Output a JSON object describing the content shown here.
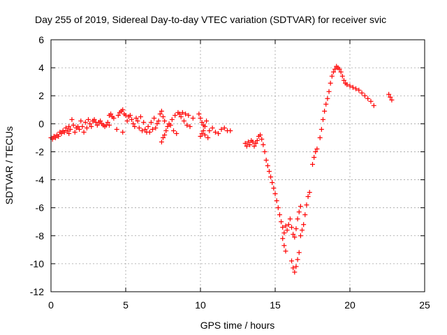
{
  "chart_data": {
    "type": "scatter",
    "title": "Day 255 of 2019, Sidereal Day-to-day VTEC variation (SDTVAR) for receiver svic",
    "xlabel": "GPS time / hours",
    "ylabel": "SDTVAR / TECUs",
    "xlim": [
      0,
      25
    ],
    "ylim": [
      -12,
      6
    ],
    "xticks": [
      0,
      5,
      10,
      15,
      20,
      25
    ],
    "yticks": [
      -12,
      -10,
      -8,
      -6,
      -4,
      -2,
      0,
      2,
      4,
      6
    ],
    "xtick_labels": [
      "0",
      "5",
      "10",
      "15",
      "20",
      "25"
    ],
    "ytick_labels": [
      "-12",
      "-10",
      "-8",
      "-6",
      "-4",
      "-2",
      "0",
      "2",
      "4",
      "6"
    ],
    "grid": true,
    "marker": "plus",
    "color": "#ff0000",
    "series": [
      {
        "points": [
          [
            0.0,
            -1.0
          ],
          [
            0.1,
            -1.1
          ],
          [
            0.2,
            -0.9
          ],
          [
            0.3,
            -1.0
          ],
          [
            0.4,
            -0.8
          ],
          [
            0.5,
            -0.9
          ],
          [
            0.6,
            -0.6
          ],
          [
            0.7,
            -0.7
          ],
          [
            0.8,
            -0.5
          ],
          [
            0.9,
            -0.6
          ],
          [
            1.0,
            -0.3
          ],
          [
            1.1,
            -0.5
          ],
          [
            1.2,
            -0.2
          ],
          [
            1.3,
            -0.4
          ],
          [
            1.2,
            -0.7
          ],
          [
            1.4,
            0.3
          ],
          [
            1.5,
            -0.1
          ],
          [
            1.6,
            -0.6
          ],
          [
            1.7,
            -0.3
          ],
          [
            1.8,
            -0.2
          ],
          [
            1.9,
            -0.4
          ],
          [
            2.0,
            0.2
          ],
          [
            2.1,
            -0.2
          ],
          [
            2.2,
            -0.6
          ],
          [
            2.3,
            0.1
          ],
          [
            2.4,
            -0.3
          ],
          [
            2.5,
            0.3
          ],
          [
            2.6,
            0.0
          ],
          [
            2.7,
            -0.2
          ],
          [
            2.8,
            0.2
          ],
          [
            2.9,
            0.3
          ],
          [
            3.0,
            0.1
          ],
          [
            3.1,
            -0.1
          ],
          [
            3.2,
            0.1
          ],
          [
            3.3,
            0.2
          ],
          [
            3.4,
            0.0
          ],
          [
            3.5,
            -0.1
          ],
          [
            3.6,
            -0.2
          ],
          [
            3.7,
            -0.1
          ],
          [
            3.8,
            0.1
          ],
          [
            3.9,
            -0.1
          ],
          [
            3.9,
            0.6
          ],
          [
            4.0,
            0.7
          ],
          [
            4.1,
            0.5
          ],
          [
            4.2,
            0.4
          ],
          [
            4.4,
            -0.4
          ],
          [
            4.5,
            0.6
          ],
          [
            4.6,
            0.8
          ],
          [
            4.7,
            0.9
          ],
          [
            4.8,
            1.0
          ],
          [
            4.9,
            0.7
          ],
          [
            5.0,
            0.6
          ],
          [
            4.8,
            -0.6
          ],
          [
            5.1,
            0.2
          ],
          [
            5.2,
            0.5
          ],
          [
            5.3,
            0.6
          ],
          [
            5.4,
            0.3
          ],
          [
            5.5,
            0.0
          ],
          [
            5.6,
            -0.2
          ],
          [
            5.7,
            0.4
          ],
          [
            5.8,
            0.2
          ],
          [
            5.9,
            -0.3
          ],
          [
            6.0,
            0.5
          ],
          [
            6.1,
            -0.5
          ],
          [
            6.2,
            0.1
          ],
          [
            6.3,
            -0.4
          ],
          [
            6.4,
            -0.6
          ],
          [
            6.5,
            -0.2
          ],
          [
            6.6,
            -0.6
          ],
          [
            6.7,
            0.1
          ],
          [
            6.8,
            -0.4
          ],
          [
            6.9,
            0.4
          ],
          [
            7.0,
            -0.3
          ],
          [
            7.1,
            0.0
          ],
          [
            7.2,
            0.2
          ],
          [
            7.3,
            0.7
          ],
          [
            7.4,
            0.9
          ],
          [
            7.5,
            0.5
          ],
          [
            7.6,
            0.2
          ],
          [
            7.4,
            -1.3
          ],
          [
            7.5,
            -1.0
          ],
          [
            7.6,
            -0.8
          ],
          [
            7.7,
            -0.5
          ],
          [
            7.8,
            -0.2
          ],
          [
            7.9,
            0.0
          ],
          [
            8.0,
            -0.1
          ],
          [
            8.1,
            0.3
          ],
          [
            8.2,
            -0.5
          ],
          [
            8.3,
            0.6
          ],
          [
            8.4,
            -0.7
          ],
          [
            8.5,
            0.8
          ],
          [
            8.6,
            0.7
          ],
          [
            8.7,
            0.5
          ],
          [
            8.8,
            0.8
          ],
          [
            8.9,
            0.2
          ],
          [
            9.0,
            0.7
          ],
          [
            9.1,
            -0.1
          ],
          [
            9.2,
            0.6
          ],
          [
            9.3,
            -0.2
          ],
          [
            9.5,
            0.4
          ],
          [
            9.9,
            0.7
          ],
          [
            10.0,
            0.4
          ],
          [
            10.1,
            0.1
          ],
          [
            10.2,
            -0.1
          ],
          [
            10.3,
            -0.2
          ],
          [
            10.4,
            0.2
          ],
          [
            10.0,
            -0.9
          ],
          [
            10.1,
            -0.7
          ],
          [
            10.2,
            -0.5
          ],
          [
            10.3,
            -0.8
          ],
          [
            10.5,
            -1.0
          ],
          [
            10.6,
            -0.5
          ],
          [
            10.8,
            -0.3
          ],
          [
            11.0,
            -0.6
          ],
          [
            11.2,
            -0.7
          ],
          [
            11.4,
            -0.4
          ],
          [
            11.6,
            -0.3
          ],
          [
            11.8,
            -0.5
          ],
          [
            12.0,
            -0.5
          ],
          [
            13.0,
            -1.4
          ],
          [
            13.1,
            -1.6
          ],
          [
            13.2,
            -1.3
          ],
          [
            13.3,
            -1.5
          ],
          [
            13.4,
            -1.2
          ],
          [
            13.5,
            -1.3
          ],
          [
            13.6,
            -1.6
          ],
          [
            13.7,
            -1.4
          ],
          [
            13.8,
            -1.2
          ],
          [
            13.9,
            -0.9
          ],
          [
            14.0,
            -0.8
          ],
          [
            14.1,
            -1.1
          ],
          [
            14.2,
            -1.5
          ],
          [
            14.3,
            -2.0
          ],
          [
            14.4,
            -2.6
          ],
          [
            14.5,
            -3.0
          ],
          [
            14.6,
            -3.4
          ],
          [
            14.7,
            -3.8
          ],
          [
            14.8,
            -4.2
          ],
          [
            14.9,
            -4.6
          ],
          [
            15.0,
            -5.0
          ],
          [
            15.1,
            -5.5
          ],
          [
            15.2,
            -6.0
          ],
          [
            15.3,
            -6.5
          ],
          [
            15.4,
            -7.0
          ],
          [
            15.5,
            -7.4
          ],
          [
            15.6,
            -7.8
          ],
          [
            15.7,
            -7.3
          ],
          [
            15.5,
            -8.2
          ],
          [
            15.6,
            -8.7
          ],
          [
            15.7,
            -9.1
          ],
          [
            15.8,
            -7.6
          ],
          [
            15.9,
            -7.2
          ],
          [
            16.0,
            -6.8
          ],
          [
            16.1,
            -7.4
          ],
          [
            16.2,
            -7.9
          ],
          [
            16.3,
            -8.1
          ],
          [
            16.1,
            -9.8
          ],
          [
            16.2,
            -10.3
          ],
          [
            16.3,
            -10.6
          ],
          [
            16.4,
            -10.2
          ],
          [
            16.5,
            -9.7
          ],
          [
            16.6,
            -9.2
          ],
          [
            16.4,
            -7.5
          ],
          [
            16.5,
            -6.8
          ],
          [
            16.6,
            -6.3
          ],
          [
            16.7,
            -5.9
          ],
          [
            16.7,
            -8.0
          ],
          [
            16.8,
            -7.6
          ],
          [
            16.9,
            -7.2
          ],
          [
            17.0,
            -6.5
          ],
          [
            17.1,
            -5.8
          ],
          [
            17.2,
            -5.2
          ],
          [
            17.3,
            -4.9
          ],
          [
            17.5,
            -2.9
          ],
          [
            17.6,
            -2.4
          ],
          [
            17.7,
            -2.0
          ],
          [
            17.8,
            -1.8
          ],
          [
            18.0,
            -1.0
          ],
          [
            18.1,
            -0.4
          ],
          [
            18.2,
            0.3
          ],
          [
            18.3,
            0.9
          ],
          [
            18.4,
            1.4
          ],
          [
            18.5,
            1.8
          ],
          [
            18.6,
            2.3
          ],
          [
            18.7,
            2.9
          ],
          [
            18.8,
            3.4
          ],
          [
            18.9,
            3.7
          ],
          [
            19.0,
            3.9
          ],
          [
            19.1,
            4.1
          ],
          [
            19.2,
            4.0
          ],
          [
            19.3,
            3.9
          ],
          [
            19.4,
            3.7
          ],
          [
            19.5,
            3.4
          ],
          [
            19.6,
            3.1
          ],
          [
            19.7,
            2.9
          ],
          [
            19.8,
            2.8
          ],
          [
            20.0,
            2.7
          ],
          [
            20.2,
            2.6
          ],
          [
            20.4,
            2.5
          ],
          [
            20.6,
            2.4
          ],
          [
            20.8,
            2.2
          ],
          [
            21.0,
            2.0
          ],
          [
            21.2,
            1.8
          ],
          [
            21.4,
            1.6
          ],
          [
            21.6,
            1.3
          ],
          [
            22.6,
            2.1
          ],
          [
            22.7,
            1.9
          ],
          [
            22.8,
            1.7
          ]
        ]
      }
    ]
  }
}
